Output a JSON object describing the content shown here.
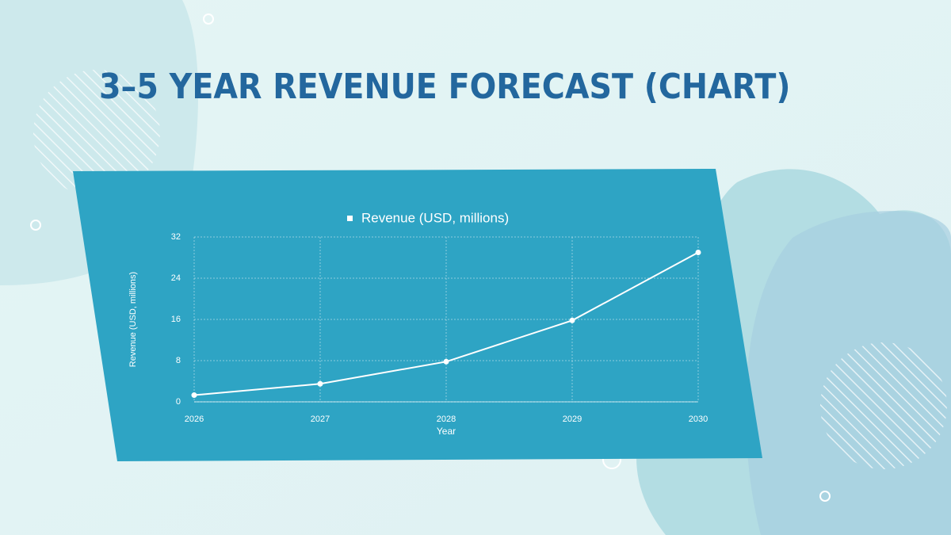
{
  "slide": {
    "title": "3–5 YEAR REVENUE FORECAST (CHART)"
  },
  "chart_data": {
    "type": "line",
    "categories": [
      "2026",
      "2027",
      "2028",
      "2029",
      "2030"
    ],
    "series": [
      {
        "name": "Revenue (USD, millions)",
        "color": "#ffffff",
        "values": [
          1.3,
          3.5,
          7.8,
          15.8,
          29
        ]
      }
    ],
    "x_label": "Year",
    "y_label": "Revenue (USD, millions)",
    "ylim": [
      0,
      32
    ],
    "yticks": [
      0,
      8,
      16,
      24,
      32
    ],
    "grid": true,
    "legend": "top"
  }
}
